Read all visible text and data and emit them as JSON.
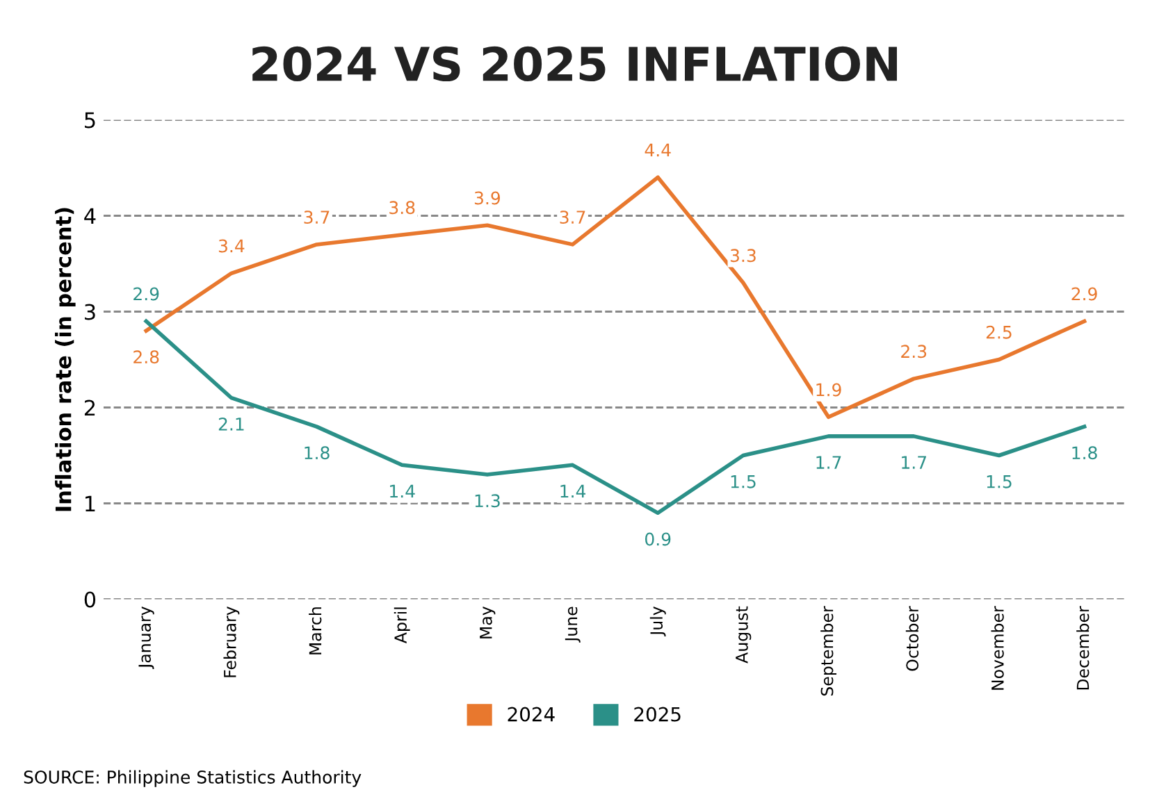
{
  "chart_data": {
    "type": "line",
    "title": "2024 VS 2025 INFLATION",
    "ylabel": "Inflation rate (in percent)",
    "categories": [
      "January",
      "February",
      "March",
      "April",
      "May",
      "June",
      "July",
      "August",
      "September",
      "October",
      "November",
      "December"
    ],
    "series": [
      {
        "name": "2024",
        "color": "#e8782e",
        "values": [
          2.8,
          3.4,
          3.7,
          3.8,
          3.9,
          3.7,
          4.4,
          3.3,
          1.9,
          2.3,
          2.5,
          2.9
        ]
      },
      {
        "name": "2025",
        "color": "#2b9088",
        "values": [
          2.9,
          2.1,
          1.8,
          1.4,
          1.3,
          1.4,
          0.9,
          1.5,
          1.7,
          1.7,
          1.5,
          1.8
        ]
      }
    ],
    "ylim": [
      0,
      5
    ],
    "yticks": [
      0,
      1,
      2,
      3,
      4,
      5
    ],
    "grid": "y",
    "legend": "bottom",
    "data_labels": true,
    "marker": "none",
    "line_style": "solid",
    "annotations": [
      "SOURCE: Philippine Statistics Authority"
    ]
  }
}
